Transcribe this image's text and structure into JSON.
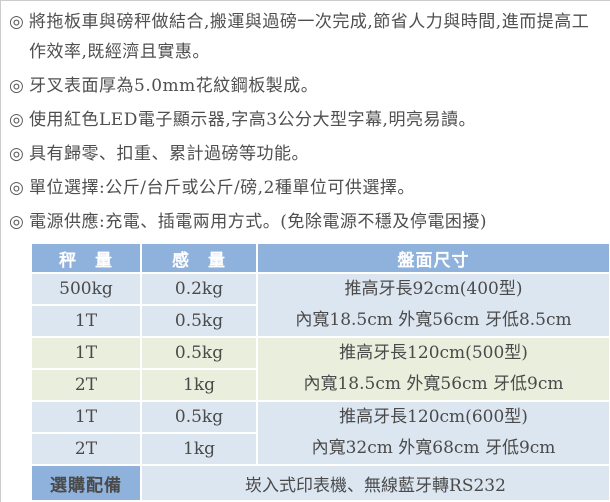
{
  "features": {
    "bullet_symbol": "◎",
    "items": [
      "將拖板車與磅秤做結合,搬運與過磅一次完成,節省人力與時間,進而提高工作效率,既經濟且實惠。",
      "牙叉表面厚為5.0mm花紋鋼板製成。",
      "使用紅色LED電子顯示器,字高3公分大型字幕,明亮易讀。",
      "具有歸零、扣重、累計過磅等功能。",
      "單位選擇:公斤/台斤或公斤/磅,2種單位可供選擇。",
      "電源供應:充電、插電兩用方式。(免除電源不穩及停電困擾)"
    ]
  },
  "spec_table": {
    "headers": {
      "capacity": "秤　量",
      "graduation": "感　量",
      "platform": "盤面尺寸"
    },
    "groups": [
      {
        "rows": [
          {
            "capacity": "500kg",
            "graduation": "0.2kg"
          },
          {
            "capacity": "1T",
            "graduation": "0.5kg"
          }
        ],
        "platform_lines": [
          "推高牙長92cm(400型)",
          "內寬18.5cm 外寬56cm 牙低8.5cm"
        ]
      },
      {
        "rows": [
          {
            "capacity": "1T",
            "graduation": "0.5kg"
          },
          {
            "capacity": "2T",
            "graduation": "1kg"
          }
        ],
        "platform_lines": [
          "推高牙長120cm(500型)",
          "內寬18.5cm 外寬56cm 牙低9cm"
        ]
      },
      {
        "rows": [
          {
            "capacity": "1T",
            "graduation": "0.5kg"
          },
          {
            "capacity": "2T",
            "graduation": "1kg"
          }
        ],
        "platform_lines": [
          "推高牙長120cm(600型)",
          "內寬32cm 外寬68cm 牙低9cm"
        ]
      }
    ],
    "options_row": {
      "label": "選購配備",
      "value": "崁入式印表機、無線藍牙轉RS232"
    },
    "colors": {
      "header_bg": "#8fb2dc",
      "group_blue": "#dce6f1",
      "group_cream": "#eaefdd",
      "header_text": "#ffffff",
      "cell_text": "#4a4a4a"
    }
  }
}
